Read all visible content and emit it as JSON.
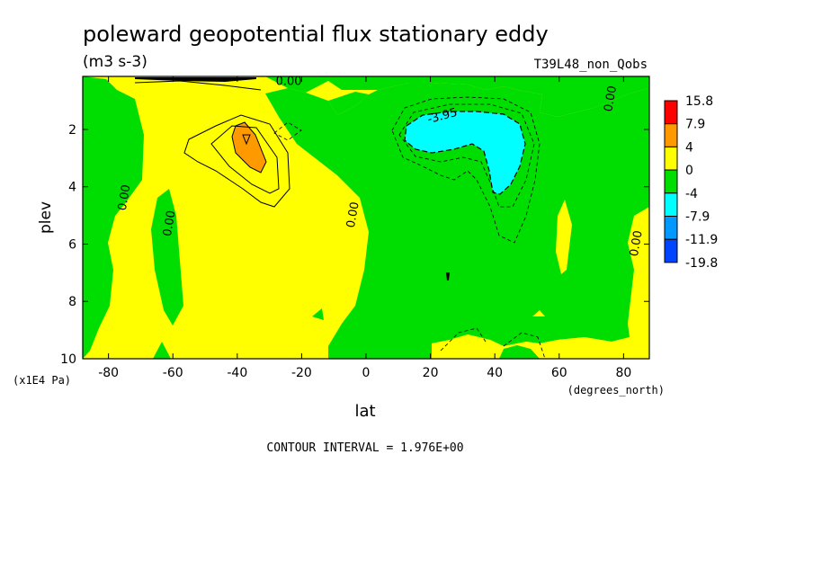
{
  "chart_data": {
    "type": "heatmap",
    "title": "poleward geopotential flux stationary eddy",
    "units": "(m3 s-3)",
    "run_label": "T39L48_non_Qobs",
    "xlabel": "lat",
    "ylabel": "plev",
    "x_units_label": "(degrees_north)",
    "y_units_label": "(x1E4 Pa)",
    "xlim": [
      -88,
      88
    ],
    "ylim": [
      10,
      0.15
    ],
    "x_ticks": [
      -80,
      -60,
      -40,
      -20,
      0,
      20,
      40,
      60,
      80
    ],
    "x_tick_labels": [
      "-80",
      "-60",
      "-40",
      "-20",
      "0",
      "20",
      "40",
      "60",
      "80"
    ],
    "y_ticks": [
      2,
      4,
      6,
      8,
      10
    ],
    "y_tick_labels": [
      "2",
      "4",
      "6",
      "8",
      "10"
    ],
    "colorbar": {
      "levels": [
        "15.8",
        "7.9",
        "4",
        "0",
        "-4",
        "-7.9",
        "-11.9",
        "-19.8"
      ],
      "colors": [
        "#ff0000",
        "#ff9900",
        "#ffff00",
        "#00dd00",
        "#00ffff",
        "#0099ff",
        "#0044ff"
      ]
    },
    "contour_labels": [
      {
        "text": "0.00",
        "lat": -24,
        "plev": 0.45
      },
      {
        "text": "-3.95",
        "lat": 24,
        "plev": 1.65
      },
      {
        "text": "0.00",
        "lat": 77,
        "plev": 0.95
      },
      {
        "text": "0.00",
        "lat": -74,
        "plev": 4.4
      },
      {
        "text": "0.00",
        "lat": -60,
        "plev": 5.3
      },
      {
        "text": "0.00",
        "lat": -3,
        "plev": 5.0
      },
      {
        "text": "0.00",
        "lat": 85,
        "plev": 6.0
      }
    ],
    "contour_interval_text": "CONTOUR INTERVAL = 1.976E+00"
  }
}
